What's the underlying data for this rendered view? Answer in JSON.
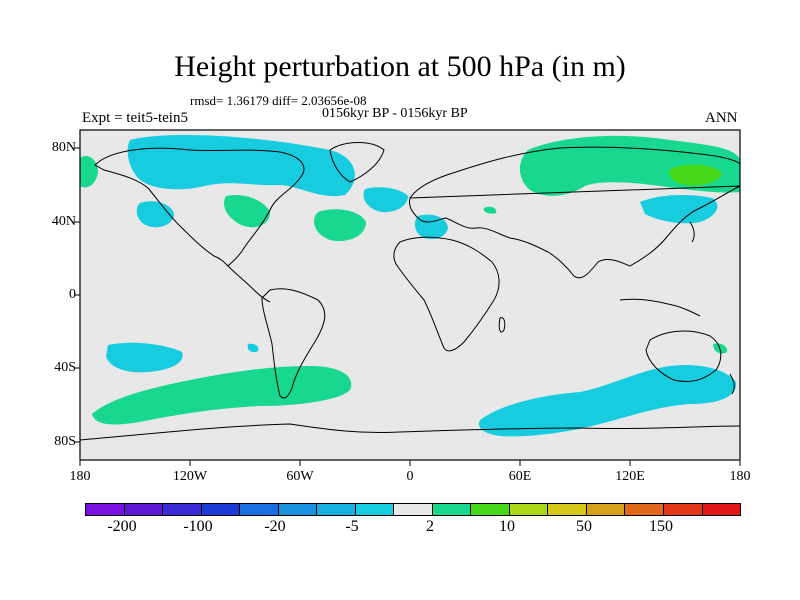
{
  "title": "Height perturbation at 500 hPa (in m)",
  "stats": "rmsd= 1.36179 diff= 2.03656e-08",
  "period": "0156kyr BP - 0156kyr BP",
  "experiment": "Expt = teit5-tein5",
  "season": "ANN",
  "map": {
    "projection": "cylindrical-equidistant",
    "background": "#e8e8e8",
    "lon_ticks": [
      "180",
      "120W",
      "60W",
      "0",
      "60E",
      "120E",
      "180"
    ],
    "lat_ticks": [
      "80N",
      "40N",
      "0",
      "40S",
      "80S"
    ]
  },
  "colorbar": {
    "colors": [
      "#7a10e0",
      "#6018d8",
      "#3a2ad8",
      "#1c3ad8",
      "#1a6ee0",
      "#1a92e0",
      "#18b0e0",
      "#18cce0",
      "#e8e8e8",
      "#18d890",
      "#44d818",
      "#a8d818",
      "#d8c818",
      "#d8a018",
      "#e06818",
      "#e03818",
      "#e01818"
    ],
    "labels": [
      "-200",
      "-100",
      "-20",
      "-5",
      "2",
      "10",
      "50",
      "150"
    ]
  },
  "fill_colors": {
    "cyan": "#18cce0",
    "green": "#18d890",
    "lightgreen": "#44d818"
  }
}
